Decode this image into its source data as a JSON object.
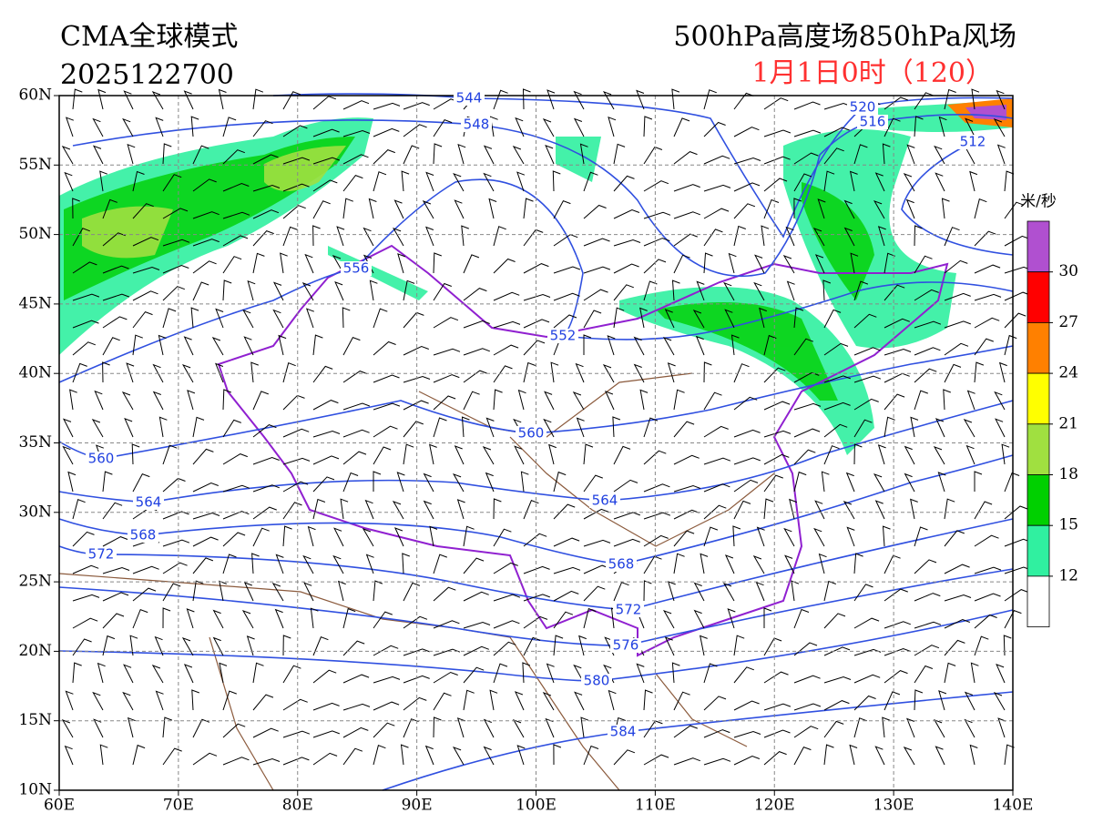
{
  "header": {
    "model": "CMA全球模式",
    "init_time": "2025122700",
    "product": "500hPa高度场850hPa风场",
    "valid_time": "1月1日0时（120）"
  },
  "map": {
    "lon_labels": [
      "60E",
      "70E",
      "80E",
      "90E",
      "100E",
      "110E",
      "120E",
      "130E",
      "140E"
    ],
    "lat_labels": [
      "60N",
      "55N",
      "50N",
      "45N",
      "40N",
      "35N",
      "30N",
      "25N",
      "20N",
      "15N",
      "10N"
    ],
    "contour_labels": [
      "544",
      "548",
      "520",
      "516",
      "512",
      "556",
      "552",
      "560",
      "560",
      "564",
      "564",
      "568",
      "568",
      "572",
      "572",
      "576",
      "580",
      "584"
    ]
  },
  "colorbar": {
    "unit": "米/秒",
    "levels": [
      30,
      27,
      24,
      21,
      18,
      15,
      12
    ],
    "colors": [
      "#b050d0",
      "#ff0000",
      "#ff8000",
      "#ffff00",
      "#a0e040",
      "#00d000",
      "#30f0a0",
      "#ffffff"
    ]
  }
}
